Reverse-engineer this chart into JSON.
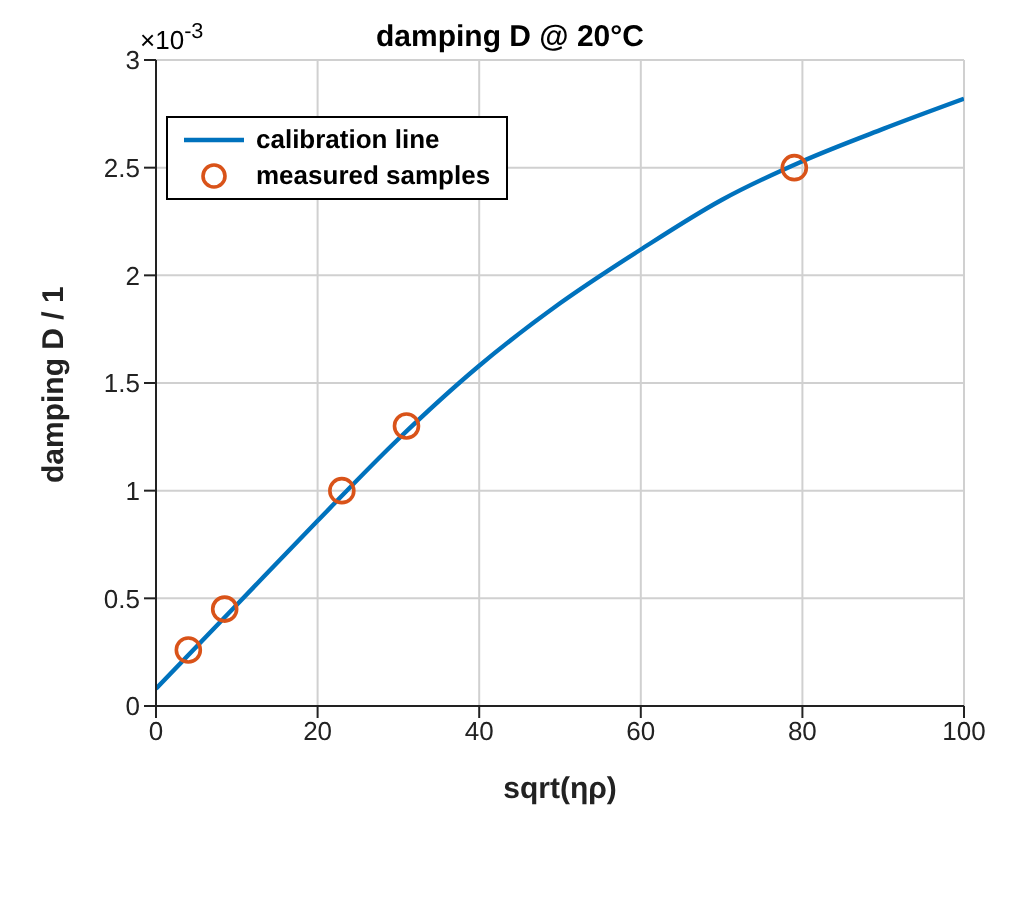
{
  "chart_data": {
    "type": "scatter",
    "title": "damping D @ 20°C",
    "xlabel": "sqrt(ηρ)",
    "ylabel": "damping D / 1",
    "annotations": [
      "×10$^{-3}$"
    ],
    "xlim": [
      0,
      100
    ],
    "xticks": [
      0,
      20,
      40,
      60,
      80,
      100
    ],
    "ylim": [
      0,
      3
    ],
    "yticks": [
      0,
      0.5,
      1,
      1.5,
      2,
      2.5,
      3
    ],
    "grid": true,
    "legend": "top left",
    "series": [
      {
        "name": "calibration line",
        "type": "line",
        "color": "#0072bd",
        "marker": "none",
        "line_style": "solid",
        "x": [
          0,
          10,
          20,
          30,
          40,
          50,
          60,
          70,
          80,
          90,
          100
        ],
        "values": [
          0.08,
          0.47,
          0.86,
          1.24,
          1.58,
          1.87,
          2.12,
          2.35,
          2.53,
          2.68,
          2.82
        ]
      },
      {
        "name": "measured samples",
        "color": "#d95319",
        "marker": "circle",
        "x": [
          4,
          8.5,
          23,
          31,
          79
        ],
        "values": [
          0.26,
          0.45,
          1.0,
          1.3,
          2.5
        ]
      }
    ]
  }
}
